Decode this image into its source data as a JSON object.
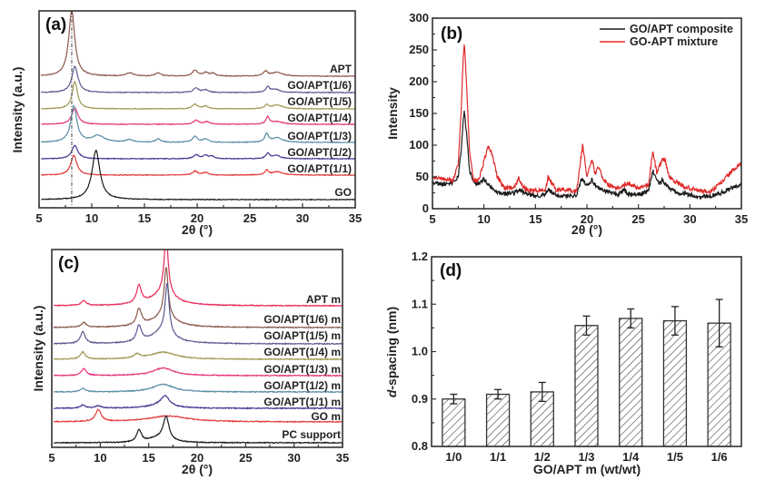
{
  "figure_title": "",
  "chart_data": [
    {
      "id": "a",
      "type": "line",
      "panel_label": "(a)",
      "title": "",
      "xlabel": "2θ (°)",
      "ylabel": "Intensity (a.u.)",
      "xlim": [
        5,
        35
      ],
      "x_ticks": [
        "5",
        "10",
        "15",
        "20",
        "25",
        "30",
        "35"
      ],
      "y_ticks": [],
      "grid": false,
      "reference_line": {
        "x": 8.1,
        "style": "dash-dot"
      },
      "series": [
        {
          "name": "APT",
          "color": "#8b5a4a",
          "peaks": [
            {
              "x": 8.1,
              "h": 1.0,
              "w": 0.35
            },
            {
              "x": 13.6,
              "h": 0.05,
              "w": 0.4
            },
            {
              "x": 16.3,
              "h": 0.05,
              "w": 0.3
            },
            {
              "x": 19.8,
              "h": 0.09,
              "w": 0.3
            },
            {
              "x": 20.8,
              "h": 0.05,
              "w": 0.3
            },
            {
              "x": 21.5,
              "h": 0.04,
              "w": 0.3
            },
            {
              "x": 26.5,
              "h": 0.07,
              "w": 0.25
            },
            {
              "x": 27.6,
              "h": 0.06,
              "w": 0.6
            }
          ]
        },
        {
          "name": "GO/APT(1/6)",
          "color": "#5b5a91",
          "peaks": [
            {
              "x": 8.4,
              "h": 0.4,
              "w": 0.35
            },
            {
              "x": 19.9,
              "h": 0.07,
              "w": 0.3
            },
            {
              "x": 20.8,
              "h": 0.04,
              "w": 0.3
            },
            {
              "x": 26.7,
              "h": 0.08,
              "w": 0.2
            },
            {
              "x": 27.4,
              "h": 0.05,
              "w": 0.5
            }
          ]
        },
        {
          "name": "GO/APT(1/5)",
          "color": "#9e9a52",
          "peaks": [
            {
              "x": 8.4,
              "h": 0.42,
              "w": 0.3
            },
            {
              "x": 19.8,
              "h": 0.07,
              "w": 0.3
            },
            {
              "x": 20.8,
              "h": 0.04,
              "w": 0.3
            },
            {
              "x": 26.6,
              "h": 0.06,
              "w": 0.2
            },
            {
              "x": 27.6,
              "h": 0.06,
              "w": 0.6
            }
          ]
        },
        {
          "name": "GO/APT(1/4)",
          "color": "#e5367c",
          "peaks": [
            {
              "x": 8.4,
              "h": 0.25,
              "w": 0.35
            },
            {
              "x": 19.9,
              "h": 0.06,
              "w": 0.3
            },
            {
              "x": 20.9,
              "h": 0.04,
              "w": 0.3
            },
            {
              "x": 26.7,
              "h": 0.11,
              "w": 0.2
            },
            {
              "x": 27.6,
              "h": 0.04,
              "w": 0.6
            }
          ]
        },
        {
          "name": "GO/APT(1/3)",
          "color": "#5a8ea6",
          "peaks": [
            {
              "x": 8.3,
              "h": 0.55,
              "w": 0.35
            },
            {
              "x": 10.6,
              "h": 0.1,
              "w": 0.7
            },
            {
              "x": 13.6,
              "h": 0.04,
              "w": 0.4
            },
            {
              "x": 16.3,
              "h": 0.05,
              "w": 0.3
            },
            {
              "x": 19.8,
              "h": 0.09,
              "w": 0.3
            },
            {
              "x": 20.8,
              "h": 0.05,
              "w": 0.3
            },
            {
              "x": 26.6,
              "h": 0.13,
              "w": 0.2
            },
            {
              "x": 27.6,
              "h": 0.07,
              "w": 0.6
            }
          ]
        },
        {
          "name": "GO/APT(1/2)",
          "color": "#4b3593",
          "peaks": [
            {
              "x": 8.4,
              "h": 0.2,
              "w": 0.35
            },
            {
              "x": 19.9,
              "h": 0.06,
              "w": 0.3
            },
            {
              "x": 20.8,
              "h": 0.05,
              "w": 0.25
            },
            {
              "x": 21.4,
              "h": 0.04,
              "w": 0.25
            },
            {
              "x": 26.7,
              "h": 0.08,
              "w": 0.2
            },
            {
              "x": 27.5,
              "h": 0.05,
              "w": 0.5
            }
          ]
        },
        {
          "name": "GO/APT(1/1)",
          "color": "#e23b3b",
          "peaks": [
            {
              "x": 8.3,
              "h": 0.3,
              "w": 0.35
            },
            {
              "x": 19.8,
              "h": 0.06,
              "w": 0.3
            },
            {
              "x": 20.8,
              "h": 0.04,
              "w": 0.3
            },
            {
              "x": 26.6,
              "h": 0.07,
              "w": 0.2
            },
            {
              "x": 27.6,
              "h": 0.05,
              "w": 0.6
            }
          ]
        },
        {
          "name": "GO",
          "color": "#1a1a1a",
          "peaks": [
            {
              "x": 10.4,
              "h": 0.75,
              "w": 0.45
            }
          ]
        }
      ]
    },
    {
      "id": "b",
      "type": "line",
      "panel_label": "(b)",
      "title": "",
      "xlabel": "2θ (°)",
      "ylabel": "Intensity",
      "xlim": [
        5,
        35
      ],
      "ylim": [
        0,
        300
      ],
      "x_ticks": [
        "5",
        "10",
        "15",
        "20",
        "25",
        "30",
        "35"
      ],
      "y_ticks": [
        "0",
        "50",
        "100",
        "150",
        "200",
        "250",
        "300"
      ],
      "grid": false,
      "legend_position": "top-right",
      "series": [
        {
          "name": "GO/APT composite",
          "color": "#1a1a1a",
          "x": [
            5,
            6,
            7,
            7.5,
            7.8,
            8.0,
            8.1,
            8.3,
            8.6,
            9.0,
            9.5,
            10.0,
            11,
            12,
            13,
            13.4,
            14,
            15,
            16,
            16.2,
            17,
            18,
            19,
            19.5,
            20,
            20.5,
            21,
            22,
            23,
            23.6,
            24,
            25,
            26,
            26.4,
            27,
            27.3,
            28,
            29,
            30,
            31,
            32,
            33,
            34,
            35
          ],
          "y": [
            40,
            38,
            42,
            50,
            95,
            140,
            153,
            120,
            60,
            42,
            40,
            47,
            28,
            24,
            25,
            30,
            24,
            20,
            22,
            30,
            21,
            20,
            22,
            47,
            38,
            45,
            32,
            27,
            22,
            30,
            22,
            22,
            28,
            60,
            38,
            45,
            32,
            25,
            22,
            18,
            20,
            25,
            32,
            37
          ]
        },
        {
          "name": "GO-APT mixture",
          "color": "#e02a2a",
          "x": [
            5,
            6,
            7,
            7.5,
            7.8,
            8.0,
            8.1,
            8.3,
            8.6,
            9.0,
            9.5,
            10.0,
            10.4,
            10.8,
            11.3,
            12,
            13,
            13.4,
            14,
            15,
            16,
            16.2,
            17,
            18,
            19,
            19.6,
            20,
            20.5,
            20.8,
            21.1,
            21.5,
            22,
            23,
            24,
            25,
            26,
            26.4,
            26.8,
            27.3,
            27.6,
            28,
            29,
            30,
            31,
            32,
            33,
            34,
            35
          ],
          "y": [
            50,
            48,
            45,
            70,
            160,
            240,
            263,
            200,
            90,
            45,
            45,
            75,
            98,
            85,
            50,
            32,
            35,
            48,
            30,
            28,
            30,
            50,
            30,
            30,
            28,
            102,
            48,
            78,
            55,
            68,
            50,
            38,
            33,
            40,
            33,
            38,
            92,
            55,
            78,
            76,
            50,
            38,
            32,
            28,
            26,
            40,
            58,
            70
          ]
        }
      ]
    },
    {
      "id": "c",
      "type": "line",
      "panel_label": "(c)",
      "title": "",
      "xlabel": "2θ (°)",
      "ylabel": "Intensity (a.u.)",
      "xlim": [
        5,
        35
      ],
      "x_ticks": [
        "5",
        "10",
        "15",
        "20",
        "25",
        "30",
        "35"
      ],
      "y_ticks": [],
      "grid": false,
      "series": [
        {
          "name": "APT m",
          "color": "#e8285a",
          "peaks": [
            {
              "x": 8.3,
              "h": 0.08,
              "w": 0.3
            },
            {
              "x": 14.0,
              "h": 0.3,
              "w": 0.3
            },
            {
              "x": 16.8,
              "h": 1.0,
              "w": 0.25
            },
            {
              "x": 16.5,
              "h": 0.2,
              "w": 1.5
            }
          ]
        },
        {
          "name": "GO/APT(1/6) m",
          "color": "#8b5a4a",
          "peaks": [
            {
              "x": 8.3,
              "h": 0.08,
              "w": 0.3
            },
            {
              "x": 14.0,
              "h": 0.28,
              "w": 0.3
            },
            {
              "x": 16.8,
              "h": 0.85,
              "w": 0.25
            },
            {
              "x": 16.5,
              "h": 0.18,
              "w": 1.5
            }
          ]
        },
        {
          "name": "GO/APT(1/5) m",
          "color": "#5b5a91",
          "peaks": [
            {
              "x": 8.2,
              "h": 0.2,
              "w": 0.3
            },
            {
              "x": 14.0,
              "h": 0.27,
              "w": 0.3
            },
            {
              "x": 16.9,
              "h": 0.85,
              "w": 0.25
            },
            {
              "x": 16.4,
              "h": 0.2,
              "w": 1.4
            }
          ]
        },
        {
          "name": "GO/APT(1/4) m",
          "color": "#9e9a52",
          "peaks": [
            {
              "x": 8.2,
              "h": 0.12,
              "w": 0.3
            },
            {
              "x": 13.8,
              "h": 0.07,
              "w": 0.4
            },
            {
              "x": 16.5,
              "h": 0.12,
              "w": 1.6
            }
          ]
        },
        {
          "name": "GO/APT(1/3) m",
          "color": "#e5367c",
          "peaks": [
            {
              "x": 8.3,
              "h": 0.12,
              "w": 0.3
            },
            {
              "x": 16.5,
              "h": 0.13,
              "w": 1.3
            }
          ]
        },
        {
          "name": "GO/APT(1/2) m",
          "color": "#5a8ea6",
          "peaks": [
            {
              "x": 8.2,
              "h": 0.06,
              "w": 0.3
            },
            {
              "x": 16.5,
              "h": 0.13,
              "w": 1.3
            }
          ]
        },
        {
          "name": "GO/APT(1/1) m",
          "color": "#4b3593",
          "peaks": [
            {
              "x": 8.2,
              "h": 0.05,
              "w": 0.3
            },
            {
              "x": 9.8,
              "h": 0.04,
              "w": 0.4
            },
            {
              "x": 16.7,
              "h": 0.16,
              "w": 0.5
            },
            {
              "x": 16.3,
              "h": 0.06,
              "w": 1.5
            }
          ]
        },
        {
          "name": "GO m",
          "color": "#e23b3b",
          "peaks": [
            {
              "x": 9.8,
              "h": 0.2,
              "w": 0.35
            },
            {
              "x": 17.0,
              "h": 0.1,
              "w": 2.5
            }
          ]
        },
        {
          "name": "PC support",
          "color": "#1a1a1a",
          "peaks": [
            {
              "x": 14.0,
              "h": 0.2,
              "w": 0.3
            },
            {
              "x": 16.8,
              "h": 0.4,
              "w": 0.35
            },
            {
              "x": 16.0,
              "h": 0.08,
              "w": 1.2
            }
          ]
        }
      ]
    },
    {
      "id": "d",
      "type": "bar",
      "panel_label": "(d)",
      "title": "",
      "xlabel": "GO/APT m (wt/wt)",
      "ylabel_italic_prefix": "d",
      "ylabel_suffix": "-spacing (nm)",
      "ylim": [
        0.8,
        1.2
      ],
      "y_ticks": [
        "0.8",
        "0.9",
        "1.0",
        "1.1",
        "1.2"
      ],
      "grid": false,
      "pattern": "diagonal-hatch",
      "categories": [
        "1/0",
        "1/1",
        "1/2",
        "1/3",
        "1/4",
        "1/5",
        "1/6"
      ],
      "values": [
        0.9,
        0.91,
        0.915,
        1.055,
        1.07,
        1.065,
        1.06
      ],
      "errors": [
        0.01,
        0.01,
        0.02,
        0.02,
        0.02,
        0.03,
        0.05
      ]
    }
  ]
}
